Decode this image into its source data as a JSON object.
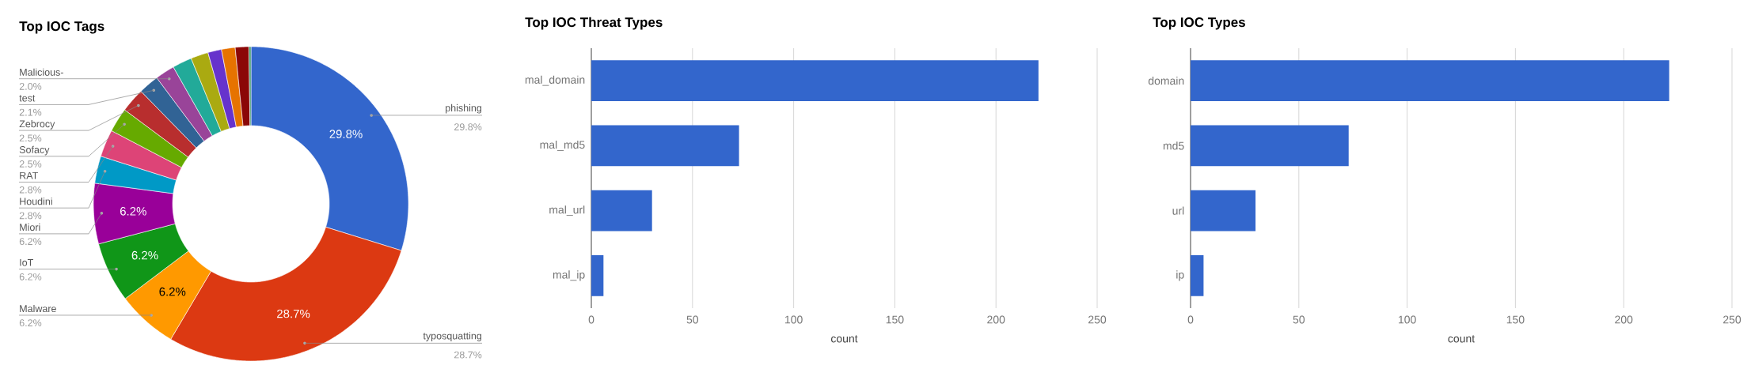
{
  "chart_data": [
    {
      "type": "donut",
      "title": "Top IOC Tags",
      "categories": [
        "phishing",
        "typosquatting",
        "Malware",
        "IoT",
        "Miori",
        "Houdini",
        "RAT",
        "Sofacy",
        "Zebrocy",
        "test",
        "Malicious-",
        null,
        null,
        null,
        null,
        null,
        null
      ],
      "values": [
        29.8,
        28.7,
        6.2,
        6.2,
        6.2,
        2.8,
        2.8,
        2.5,
        2.5,
        2.1,
        2.0,
        2.0,
        1.8,
        1.4,
        1.4,
        1.4,
        0.2
      ],
      "colors": [
        "#3366cc",
        "#dc3912",
        "#ff9900",
        "#109618",
        "#990099",
        "#0099c6",
        "#dd4477",
        "#66aa00",
        "#b82e2e",
        "#316395",
        "#994499",
        "#22aa99",
        "#aaaa11",
        "#6633cc",
        "#e67300",
        "#8b0707",
        "#329262"
      ],
      "value_labels": [
        "29.8%",
        "28.7%",
        "6.2%",
        "6.2%",
        "6.2%",
        "2.8%",
        "2.8%",
        "2.5%",
        "2.5%",
        "2.1%",
        "2.0%",
        null,
        null,
        null,
        null,
        null,
        null
      ]
    },
    {
      "type": "bar",
      "orientation": "horizontal",
      "title": "Top IOC Threat Types",
      "xlabel": "count",
      "categories": [
        "mal_domain",
        "mal_md5",
        "mal_url",
        "mal_ip"
      ],
      "values": [
        221,
        73,
        30,
        6
      ],
      "color": "#3366cc",
      "xlim": [
        0,
        250
      ],
      "xticks": [
        0,
        50,
        100,
        150,
        200,
        250
      ],
      "grid": "x"
    },
    {
      "type": "bar",
      "orientation": "horizontal",
      "title": "Top IOC Types",
      "xlabel": "count",
      "categories": [
        "domain",
        "md5",
        "url",
        "ip"
      ],
      "values": [
        221,
        73,
        30,
        6
      ],
      "color": "#3366cc",
      "xlim": [
        0,
        250
      ],
      "xticks": [
        0,
        50,
        100,
        150,
        200,
        250
      ],
      "grid": "x"
    }
  ]
}
